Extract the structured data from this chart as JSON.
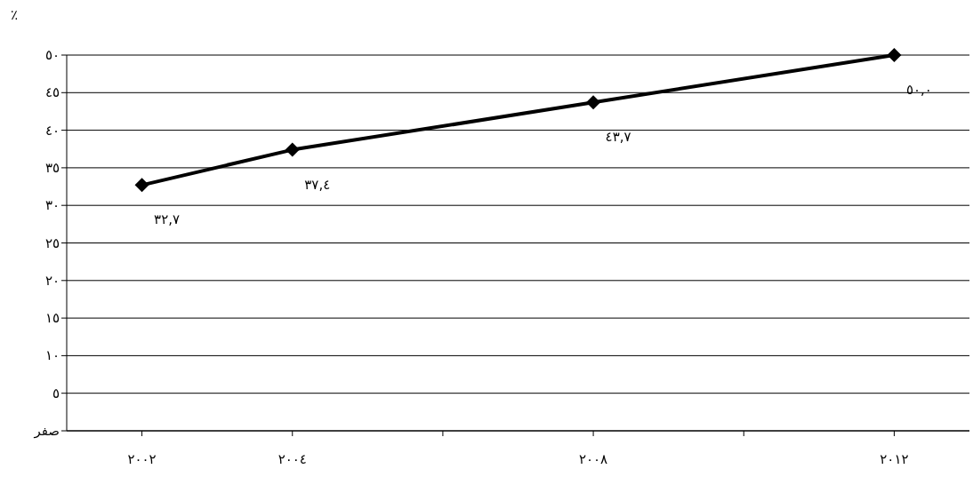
{
  "chart_data": {
    "type": "line",
    "ylabel": "٪",
    "x": [
      2002,
      2004,
      2008,
      2012
    ],
    "values": [
      32.7,
      37.4,
      43.7,
      50.0
    ],
    "value_labels": [
      "٣٢,٧",
      "٣٧,٤",
      "٤٣,٧",
      "٥٠,٠"
    ],
    "color": "#000000",
    "marker": "diamond",
    "grid": "y",
    "xlim": [
      2001,
      2013
    ],
    "xticks": [
      {
        "value": 2002,
        "label": "٢٠٠٢"
      },
      {
        "value": 2004,
        "label": "٢٠٠٤"
      },
      {
        "value": 2006,
        "label": null
      },
      {
        "value": 2008,
        "label": "٢٠٠٨"
      },
      {
        "value": 2010,
        "label": null
      },
      {
        "value": 2012,
        "label": "٢٠١٢"
      }
    ],
    "ylim": [
      0,
      50
    ],
    "yticks": [
      {
        "value": 0,
        "label": "صفر"
      },
      {
        "value": 5,
        "label": "٥"
      },
      {
        "value": 10,
        "label": "١٠"
      },
      {
        "value": 15,
        "label": "١٥"
      },
      {
        "value": 20,
        "label": "٢٠"
      },
      {
        "value": 25,
        "label": "٢٥"
      },
      {
        "value": 30,
        "label": "٣٠"
      },
      {
        "value": 35,
        "label": "٣٥"
      },
      {
        "value": 40,
        "label": "٤٠"
      },
      {
        "value": 45,
        "label": "٤٥"
      },
      {
        "value": 50,
        "label": "٥٠"
      }
    ]
  }
}
